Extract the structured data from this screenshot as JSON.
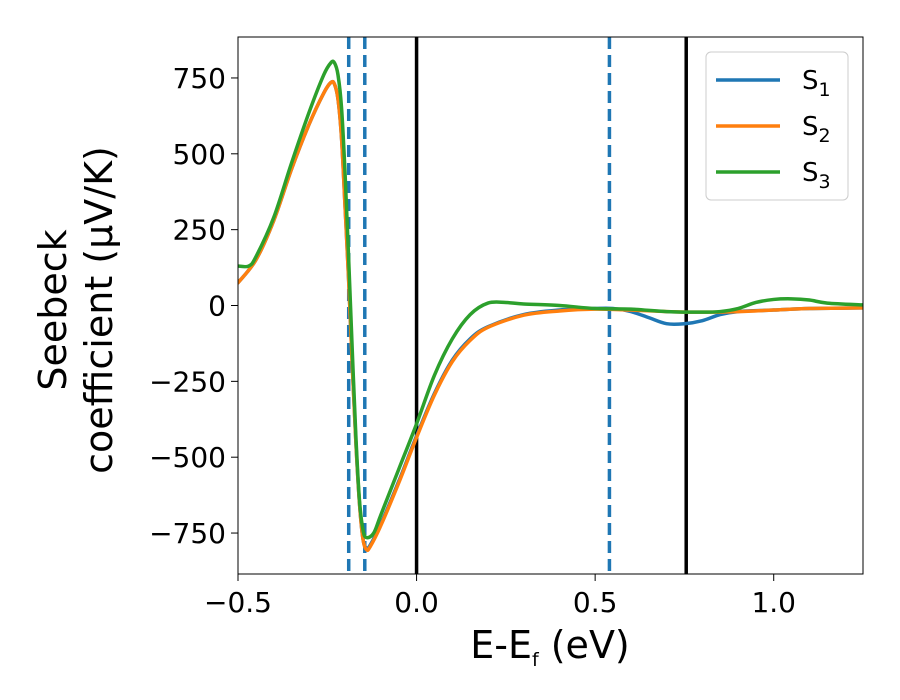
{
  "chart_data": {
    "type": "line",
    "title": "",
    "xlabel": "E-E",
    "xlabel_subscript": "f",
    "xlabel_unit": " (eV)",
    "ylabel_line1": "Seebeck",
    "ylabel_line2": "coefficient  (μV/K)",
    "xlim": [
      -0.5,
      1.25
    ],
    "ylim": [
      -885,
      885
    ],
    "xticks": [
      -0.5,
      0.0,
      0.5,
      1.0
    ],
    "xtick_labels": [
      "−0.5",
      "0.0",
      "0.5",
      "1.0"
    ],
    "yticks": [
      750,
      500,
      250,
      0,
      -250,
      -500,
      -750
    ],
    "ytick_labels": [
      "750",
      "500",
      "250",
      "0",
      "−250",
      "−500",
      "−750"
    ],
    "legend_position": "top-right",
    "series": [
      {
        "name": "S",
        "subscript": "1",
        "color": "#1f77b4",
        "x": [
          -0.5,
          -0.45,
          -0.4,
          -0.35,
          -0.3,
          -0.26,
          -0.24,
          -0.23,
          -0.22,
          -0.21,
          -0.2,
          -0.19,
          -0.18,
          -0.17,
          -0.16,
          -0.15,
          -0.14,
          -0.13,
          -0.1,
          -0.05,
          0.0,
          0.05,
          0.1,
          0.15,
          0.2,
          0.3,
          0.4,
          0.5,
          0.55,
          0.6,
          0.65,
          0.7,
          0.75,
          0.8,
          0.85,
          0.9,
          1.0,
          1.1,
          1.25
        ],
        "y": [
          75,
          150,
          280,
          450,
          600,
          700,
          735,
          730,
          680,
          550,
          320,
          80,
          -200,
          -450,
          -650,
          -770,
          -800,
          -790,
          -720,
          -580,
          -430,
          -290,
          -180,
          -110,
          -70,
          -30,
          -15,
          -10,
          -10,
          -20,
          -40,
          -60,
          -60,
          -50,
          -30,
          -20,
          -15,
          -10,
          -8
        ]
      },
      {
        "name": "S",
        "subscript": "2",
        "color": "#ff7f0e",
        "x": [
          -0.5,
          -0.45,
          -0.4,
          -0.35,
          -0.3,
          -0.26,
          -0.24,
          -0.23,
          -0.22,
          -0.21,
          -0.2,
          -0.19,
          -0.18,
          -0.17,
          -0.16,
          -0.15,
          -0.14,
          -0.13,
          -0.1,
          -0.05,
          0.0,
          0.05,
          0.1,
          0.15,
          0.2,
          0.3,
          0.4,
          0.5,
          0.6,
          0.7,
          0.8,
          0.9,
          1.0,
          1.1,
          1.25
        ],
        "y": [
          75,
          150,
          280,
          450,
          600,
          700,
          735,
          730,
          680,
          550,
          320,
          80,
          -200,
          -450,
          -650,
          -770,
          -805,
          -795,
          -725,
          -585,
          -435,
          -295,
          -185,
          -115,
          -72,
          -32,
          -18,
          -12,
          -15,
          -20,
          -22,
          -20,
          -15,
          -10,
          -8
        ]
      },
      {
        "name": "S",
        "subscript": "3",
        "color": "#2ca02c",
        "x": [
          -0.5,
          -0.47,
          -0.45,
          -0.4,
          -0.35,
          -0.3,
          -0.26,
          -0.24,
          -0.23,
          -0.22,
          -0.21,
          -0.2,
          -0.19,
          -0.18,
          -0.17,
          -0.16,
          -0.15,
          -0.14,
          -0.12,
          -0.1,
          -0.05,
          0.0,
          0.05,
          0.1,
          0.15,
          0.2,
          0.25,
          0.3,
          0.4,
          0.5,
          0.6,
          0.7,
          0.8,
          0.85,
          0.9,
          0.95,
          1.0,
          1.05,
          1.1,
          1.15,
          1.25
        ],
        "y": [
          130,
          130,
          160,
          290,
          470,
          640,
          760,
          800,
          800,
          760,
          650,
          430,
          150,
          -150,
          -430,
          -640,
          -740,
          -765,
          -750,
          -690,
          -540,
          -390,
          -230,
          -110,
          -30,
          8,
          10,
          5,
          0,
          -10,
          -12,
          -20,
          -22,
          -20,
          -10,
          10,
          20,
          22,
          18,
          8,
          2
        ]
      }
    ],
    "vlines": [
      {
        "x": -0.19,
        "style": "dashed",
        "color": "#1f77b4"
      },
      {
        "x": -0.145,
        "style": "dashed",
        "color": "#1f77b4"
      },
      {
        "x": 0.0,
        "style": "solid",
        "color": "#000000"
      },
      {
        "x": 0.54,
        "style": "dashed",
        "color": "#1f77b4"
      },
      {
        "x": 0.755,
        "style": "solid",
        "color": "#000000"
      }
    ]
  }
}
